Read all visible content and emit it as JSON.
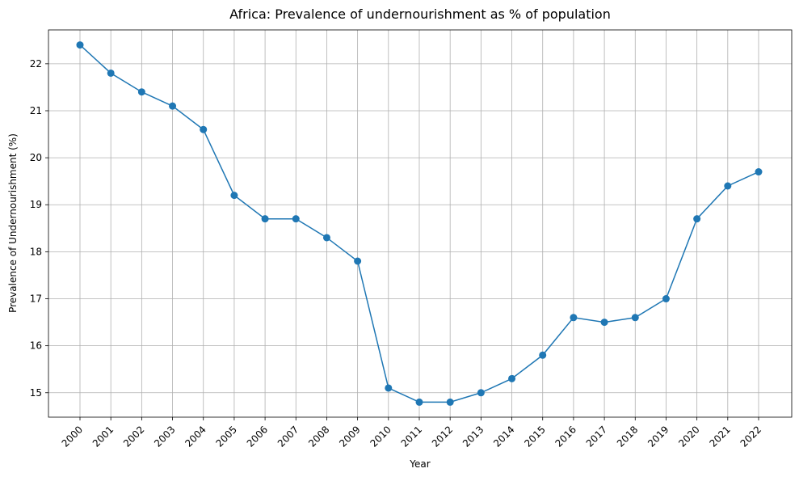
{
  "chart_data": {
    "type": "line",
    "title": "Africa: Prevalence of undernourishment as % of population",
    "xlabel": "Year",
    "ylabel": "Prevalence of Undernourishment (%)",
    "x": [
      "2000",
      "2001",
      "2002",
      "2003",
      "2004",
      "2005",
      "2006",
      "2007",
      "2008",
      "2009",
      "2010",
      "2011",
      "2012",
      "2013",
      "2014",
      "2015",
      "2016",
      "2017",
      "2018",
      "2019",
      "2020",
      "2021",
      "2022"
    ],
    "series": [
      {
        "values": [
          22.4,
          21.8,
          21.4,
          21.1,
          20.6,
          19.2,
          18.7,
          18.7,
          18.3,
          17.8,
          15.1,
          14.8,
          14.8,
          15.0,
          15.3,
          15.8,
          16.6,
          16.5,
          16.6,
          17.0,
          18.7,
          19.4,
          19.7
        ],
        "color": "#1f77b4",
        "marker": "circle"
      }
    ],
    "yticks": [
      15,
      16,
      17,
      18,
      19,
      20,
      21,
      22
    ],
    "ylim": [
      14.48,
      22.72
    ],
    "grid": true,
    "xtick_rotation": 45
  }
}
